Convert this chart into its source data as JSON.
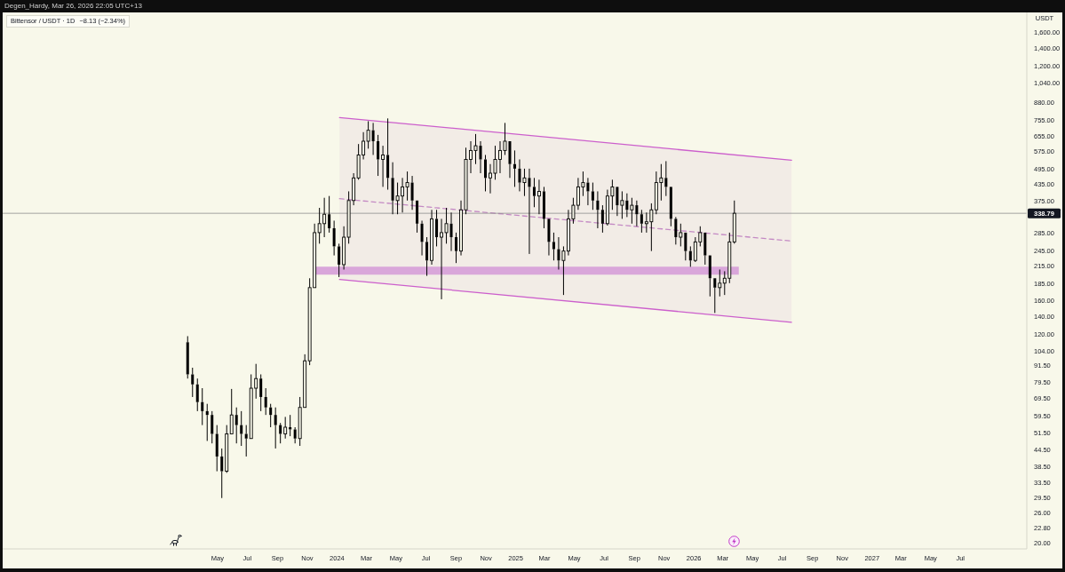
{
  "chart_data": {
    "type": "candlestick",
    "title": "Bittensor / USDT · 1D",
    "ylabel": "USDT",
    "annotations": [
      "Degen_Hardy, Mar 26, 2026 22:05 UTC+13",
      "−8.13 (−2.34%)"
    ],
    "series": [
      {
        "type": "candlestick",
        "color": "#000000",
        "x": [
          "2023-03-01",
          "2023-03-11",
          "2023-03-21",
          "2023-03-31",
          "2023-04-10",
          "2023-04-20",
          "2023-04-30",
          "2023-05-10",
          "2023-05-20",
          "2023-05-30",
          "2023-06-09",
          "2023-06-19",
          "2023-06-29",
          "2023-07-09",
          "2023-07-19",
          "2023-07-29",
          "2023-08-08",
          "2023-08-18",
          "2023-08-28",
          "2023-09-07",
          "2023-09-17",
          "2023-09-27",
          "2023-10-07",
          "2023-10-17",
          "2023-10-27",
          "2023-11-06",
          "2023-11-16",
          "2023-11-26",
          "2023-12-06",
          "2023-12-16",
          "2023-12-26",
          "2024-01-05",
          "2024-01-15",
          "2024-01-25",
          "2024-02-04",
          "2024-02-14",
          "2024-02-24",
          "2024-03-05",
          "2024-03-15",
          "2024-03-25",
          "2024-04-04",
          "2024-04-14",
          "2024-04-24",
          "2024-05-04",
          "2024-05-14",
          "2024-05-24",
          "2024-06-03",
          "2024-06-13",
          "2024-06-23",
          "2024-07-03",
          "2024-07-13",
          "2024-07-23",
          "2024-08-02",
          "2024-08-12",
          "2024-08-22",
          "2024-09-01",
          "2024-09-11",
          "2024-09-21",
          "2024-10-01",
          "2024-10-11",
          "2024-10-21",
          "2024-10-31",
          "2024-11-10",
          "2024-11-20",
          "2024-11-30",
          "2024-12-10",
          "2024-12-20",
          "2024-12-30",
          "2025-01-09",
          "2025-01-19",
          "2025-01-29",
          "2025-02-08",
          "2025-02-18",
          "2025-02-28",
          "2025-03-10",
          "2025-03-20",
          "2025-03-30",
          "2025-04-09",
          "2025-04-19",
          "2025-04-29",
          "2025-05-09",
          "2025-05-19",
          "2025-05-29",
          "2025-06-08",
          "2025-06-18",
          "2025-06-28",
          "2025-07-08",
          "2025-07-18",
          "2025-07-28",
          "2025-08-07",
          "2025-08-17",
          "2025-08-27",
          "2025-09-06",
          "2025-09-16",
          "2025-09-26",
          "2025-10-06",
          "2025-10-16",
          "2025-10-26",
          "2025-11-05",
          "2025-11-15",
          "2025-11-25",
          "2025-12-05",
          "2025-12-15",
          "2025-12-25",
          "2026-01-04",
          "2026-01-14",
          "2026-01-24",
          "2026-02-03",
          "2026-02-13",
          "2026-02-23",
          "2026-03-05",
          "2026-03-15",
          "2026-03-25"
        ],
        "ohlc": [
          [
            112,
            118,
            82,
            85
          ],
          [
            85,
            90,
            70,
            78
          ],
          [
            78,
            82,
            62,
            67
          ],
          [
            67,
            75.5,
            55,
            62
          ],
          [
            62,
            66,
            48,
            60
          ],
          [
            60,
            62,
            47,
            51
          ],
          [
            51,
            55,
            37,
            42
          ],
          [
            42,
            45,
            29.4,
            37
          ],
          [
            37,
            55,
            36.5,
            51
          ],
          [
            51,
            75,
            51,
            60
          ],
          [
            60,
            64,
            47,
            55
          ],
          [
            55,
            62,
            46,
            51
          ],
          [
            51,
            55,
            42,
            49
          ],
          [
            49,
            85,
            49,
            75.5
          ],
          [
            75.5,
            93,
            69,
            82
          ],
          [
            82,
            85,
            62,
            70
          ],
          [
            70,
            75.5,
            60,
            64
          ],
          [
            64,
            66,
            54,
            60
          ],
          [
            60,
            64,
            45,
            55
          ],
          [
            55,
            56,
            47,
            51
          ],
          [
            51,
            59,
            49,
            54
          ],
          [
            54,
            60,
            50,
            53
          ],
          [
            53,
            54,
            47,
            49
          ],
          [
            49,
            70,
            46,
            64
          ],
          [
            64,
            101,
            64,
            95.5
          ],
          [
            95.5,
            194,
            92,
            179
          ],
          [
            179,
            310,
            179,
            287
          ],
          [
            287,
            355,
            261,
            310
          ],
          [
            310,
            387,
            276,
            336
          ],
          [
            336,
            393,
            287,
            298
          ],
          [
            298,
            318,
            236,
            255
          ],
          [
            255,
            261,
            196,
            218
          ],
          [
            218,
            303,
            209,
            276
          ],
          [
            276,
            409,
            261,
            378
          ],
          [
            378,
            478,
            363,
            459
          ],
          [
            459,
            614,
            452,
            559
          ],
          [
            559,
            680,
            538,
            629
          ],
          [
            629,
            747,
            590,
            691
          ],
          [
            691,
            736,
            559,
            629
          ],
          [
            629,
            664,
            467,
            538
          ],
          [
            538,
            605,
            425,
            559
          ],
          [
            559,
            765,
            415,
            459
          ],
          [
            459,
            525,
            336,
            378
          ],
          [
            378,
            441,
            336,
            393
          ],
          [
            393,
            459,
            341,
            425
          ],
          [
            425,
            485,
            378,
            441
          ],
          [
            441,
            467,
            349,
            378
          ],
          [
            378,
            378,
            287,
            310
          ],
          [
            310,
            318,
            236,
            265
          ],
          [
            265,
            276,
            198,
            226
          ],
          [
            226,
            349,
            218,
            323
          ],
          [
            323,
            349,
            255,
            276
          ],
          [
            276,
            323,
            162,
            287
          ],
          [
            287,
            355,
            261,
            310
          ],
          [
            310,
            341,
            245,
            276
          ],
          [
            276,
            287,
            221,
            245
          ],
          [
            245,
            378,
            236,
            349
          ],
          [
            349,
            595,
            336,
            538
          ],
          [
            538,
            629,
            478,
            581
          ],
          [
            581,
            669,
            517,
            605
          ],
          [
            605,
            629,
            478,
            538
          ],
          [
            538,
            559,
            409,
            459
          ],
          [
            459,
            517,
            402,
            478
          ],
          [
            478,
            605,
            452,
            538
          ],
          [
            538,
            629,
            478,
            581
          ],
          [
            581,
            736,
            559,
            629
          ],
          [
            629,
            629,
            459,
            517
          ],
          [
            517,
            581,
            425,
            497
          ],
          [
            497,
            538,
            409,
            441
          ],
          [
            441,
            497,
            393,
            459
          ],
          [
            459,
            497,
            239,
            425
          ],
          [
            425,
            459,
            357,
            393
          ],
          [
            393,
            452,
            336,
            409
          ],
          [
            409,
            425,
            298,
            323
          ],
          [
            323,
            323,
            236,
            265
          ],
          [
            265,
            287,
            226,
            249
          ],
          [
            249,
            276,
            209,
            226
          ],
          [
            226,
            255,
            168,
            245
          ],
          [
            245,
            349,
            236,
            323
          ],
          [
            323,
            387,
            310,
            363
          ],
          [
            363,
            459,
            349,
            425
          ],
          [
            425,
            485,
            393,
            441
          ],
          [
            441,
            459,
            363,
            409
          ],
          [
            409,
            441,
            349,
            378
          ],
          [
            378,
            409,
            298,
            349
          ],
          [
            349,
            363,
            287,
            310
          ],
          [
            310,
            415,
            305,
            393
          ],
          [
            393,
            452,
            349,
            425
          ],
          [
            425,
            425,
            331,
            363
          ],
          [
            363,
            409,
            323,
            378
          ],
          [
            378,
            402,
            328,
            349
          ],
          [
            349,
            387,
            310,
            363
          ],
          [
            363,
            378,
            303,
            336
          ],
          [
            336,
            349,
            287,
            310
          ],
          [
            310,
            341,
            287,
            315
          ],
          [
            315,
            369,
            245,
            349
          ],
          [
            349,
            485,
            336,
            441
          ],
          [
            441,
            517,
            378,
            459
          ],
          [
            459,
            530,
            393,
            425
          ],
          [
            425,
            425,
            303,
            323
          ],
          [
            323,
            328,
            259,
            276
          ],
          [
            276,
            310,
            255,
            287
          ],
          [
            287,
            287,
            226,
            245
          ],
          [
            245,
            255,
            214,
            226
          ],
          [
            226,
            276,
            223,
            265
          ],
          [
            265,
            303,
            255,
            287
          ],
          [
            287,
            287,
            218,
            236
          ],
          [
            236,
            236,
            166,
            194
          ],
          [
            194,
            194,
            144,
            179
          ],
          [
            179,
            209,
            166,
            186
          ],
          [
            186,
            206,
            168,
            194
          ],
          [
            194,
            287,
            186,
            265
          ],
          [
            265,
            378,
            261,
            338.79
          ]
        ]
      },
      {
        "type": "line",
        "x": [
          "2024-01-06",
          "2026-07-20"
        ],
        "values": [
          771,
          534
        ],
        "color": "#cc5fcc"
      },
      {
        "type": "line",
        "x": [
          "2024-01-06",
          "2026-07-20"
        ],
        "values": [
          192,
          133
        ],
        "color": "#cc5fcc"
      },
      {
        "type": "line",
        "x": [
          "2024-01-06",
          "2026-07-20"
        ],
        "values": [
          384,
          267
        ],
        "lower": [
          192,
          133
        ],
        "upper": [
          771,
          534
        ],
        "color": "#c48ac4",
        "line_style": "dashed"
      },
      {
        "type": "line",
        "x": [
          "2023-11-18",
          "2026-04-03"
        ],
        "values": [
          207,
          207
        ],
        "color": "#d9a6da"
      }
    ],
    "xlim": [
      "2022-02-15",
      "2027-11-14"
    ],
    "xticks": [
      {
        "value": "2023-05-01",
        "label": "May"
      },
      {
        "value": "2023-07-01",
        "label": "Jul"
      },
      {
        "value": "2023-09-01",
        "label": "Sep"
      },
      {
        "value": "2023-11-01",
        "label": "Nov"
      },
      {
        "value": "2024-01-01",
        "label": "2024"
      },
      {
        "value": "2024-03-01",
        "label": "Mar"
      },
      {
        "value": "2024-05-01",
        "label": "May"
      },
      {
        "value": "2024-07-01",
        "label": "Jul"
      },
      {
        "value": "2024-09-01",
        "label": "Sep"
      },
      {
        "value": "2024-11-01",
        "label": "Nov"
      },
      {
        "value": "2025-01-01",
        "label": "2025"
      },
      {
        "value": "2025-03-01",
        "label": "Mar"
      },
      {
        "value": "2025-05-01",
        "label": "May"
      },
      {
        "value": "2025-07-01",
        "label": "Jul"
      },
      {
        "value": "2025-09-01",
        "label": "Sep"
      },
      {
        "value": "2025-11-01",
        "label": "Nov"
      },
      {
        "value": "2026-01-01",
        "label": "2026"
      },
      {
        "value": "2026-03-01",
        "label": "Mar"
      },
      {
        "value": "2026-05-01",
        "label": "May"
      },
      {
        "value": "2026-07-01",
        "label": "Jul"
      },
      {
        "value": "2026-09-01",
        "label": "Sep"
      },
      {
        "value": "2026-11-01",
        "label": "Nov"
      },
      {
        "value": "2027-01-01",
        "label": "2027"
      },
      {
        "value": "2027-03-01",
        "label": "Mar"
      },
      {
        "value": "2027-05-01",
        "label": "May"
      },
      {
        "value": "2027-07-01",
        "label": "Jul"
      }
    ],
    "ylim": [
      19,
      1900
    ],
    "yticks": [
      {
        "value": 20,
        "label": "20.00"
      },
      {
        "value": 22.8,
        "label": "22.80"
      },
      {
        "value": 26,
        "label": "26.00"
      },
      {
        "value": 29.5,
        "label": "29.50"
      },
      {
        "value": 33.5,
        "label": "33.50"
      },
      {
        "value": 38.5,
        "label": "38.50"
      },
      {
        "value": 44.5,
        "label": "44.50"
      },
      {
        "value": 51.5,
        "label": "51.50"
      },
      {
        "value": 59.5,
        "label": "59.50"
      },
      {
        "value": 69.5,
        "label": "69.50"
      },
      {
        "value": 79.5,
        "label": "79.50"
      },
      {
        "value": 91.5,
        "label": "91.50"
      },
      {
        "value": 104,
        "label": "104.00"
      },
      {
        "value": 120,
        "label": "120.00"
      },
      {
        "value": 140,
        "label": "140.00"
      },
      {
        "value": 160,
        "label": "160.00"
      },
      {
        "value": 185,
        "label": "185.00"
      },
      {
        "value": 215,
        "label": "215.00"
      },
      {
        "value": 245,
        "label": "245.00"
      },
      {
        "value": 285,
        "label": "285.00"
      },
      {
        "value": 375,
        "label": "375.00"
      },
      {
        "value": 435,
        "label": "435.00"
      },
      {
        "value": 495,
        "label": "495.00"
      },
      {
        "value": 575,
        "label": "575.00"
      },
      {
        "value": 655,
        "label": "655.00"
      },
      {
        "value": 755,
        "label": "755.00"
      },
      {
        "value": 880,
        "label": "880.00"
      },
      {
        "value": 1040,
        "label": "1,040.00"
      },
      {
        "value": 1200,
        "label": "1,200.00"
      },
      {
        "value": 1400,
        "label": "1,400.00"
      },
      {
        "value": 1600,
        "label": "1,600.00"
      }
    ],
    "log": true,
    "marker": "none",
    "ref_lines": [
      {
        "axis": "y",
        "value": 338.79,
        "label": "338.79",
        "color": "#8c8c8c"
      }
    ]
  }
}
